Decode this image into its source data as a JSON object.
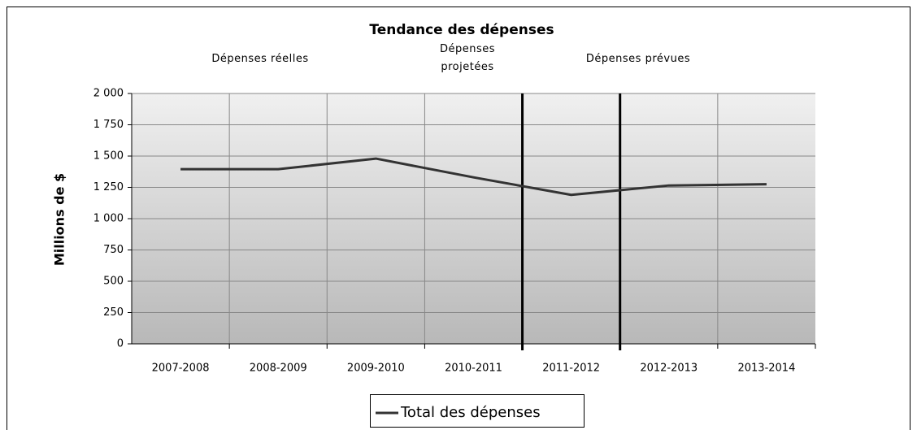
{
  "chart_data": {
    "type": "line",
    "title": "Tendance des dépenses",
    "annotations": [
      "Dépenses réelles",
      "Dépenses projetées",
      "Dépenses prévues"
    ],
    "y_label": "Millions de $",
    "categories": [
      "2007-2008",
      "2008-2009",
      "2009-2010",
      "2010-2011",
      "2011-2012",
      "2012-2013",
      "2013-2014"
    ],
    "series": [
      {
        "name": "Total des dépenses",
        "color": "#333333",
        "values": [
          1395,
          1395,
          1480,
          1330,
          1190,
          1265,
          1275
        ]
      }
    ],
    "ylim": [
      0,
      2000
    ],
    "yticks": [
      0,
      250,
      500,
      750,
      {
        "value": 1000,
        "label": "1 000"
      },
      {
        "value": 1250,
        "label": "1 250"
      },
      {
        "value": 1500,
        "label": "1 500"
      },
      {
        "value": 1750,
        "label": "1 750"
      },
      {
        "value": 2000,
        "label": "2 000"
      }
    ],
    "grid": true,
    "legend": "bottom"
  }
}
